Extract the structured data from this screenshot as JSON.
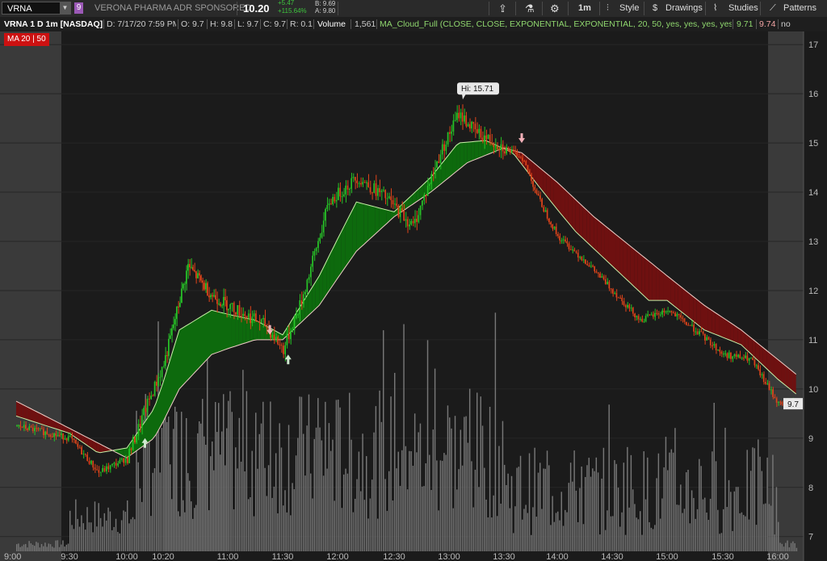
{
  "toolbar": {
    "symbol": "VRNA",
    "symbol_badge": "9",
    "company": "VERONA PHARMA ADR SPONSORED",
    "last": "10.20",
    "change": "+5.47",
    "change_pct": "+115.64%",
    "bid": "B: 9.69",
    "ask": "A: 9.80",
    "timeframe": "1m",
    "style": "Style",
    "drawings": "Drawings",
    "studies": "Studies",
    "patterns": "Patterns"
  },
  "infobar": {
    "title": "VRNA 1 D 1m [NASDAQ]",
    "date": "D: 7/17/20 7:59 PM",
    "open": "O: 9.7",
    "high": "H: 9.8",
    "low": "L: 9.7",
    "close": "C: 9.7",
    "range": "R: 0.1",
    "volume_label": "Volume",
    "volume_value": "1,561",
    "study": "MA_Cloud_Full (CLOSE, CLOSE, EXPONENTIAL, EXPONENTIAL, 20, 50, yes, yes, yes, yes, yes, no)",
    "study_val1": "9.71",
    "study_val2": "9.74",
    "study_val3": "no"
  },
  "ma_label": "MA 20 | 50",
  "colors": {
    "up": "#27c427",
    "down": "#e0441a",
    "cloud_bull": "#0d6a0d",
    "cloud_bear": "#6e1010",
    "ma_fast": "#c8f0a8",
    "ma_slow": "#f0d0c8",
    "volume": "#777777",
    "extended_hours": "#3a3a3a"
  },
  "chart_data": {
    "type": "candlestick",
    "symbol": "VRNA",
    "interval": "1m",
    "ylim": [
      6.7,
      17.2
    ],
    "yticks": [
      7,
      8,
      9,
      10,
      11,
      12,
      13,
      14,
      15,
      16,
      17
    ],
    "xticks": [
      "9:00",
      "9:30",
      "10:00",
      "10:20",
      "11:00",
      "11:30",
      "12:00",
      "12:30",
      "13:00",
      "13:30",
      "14:00",
      "14:30",
      "15:00",
      "15:30",
      "16:00"
    ],
    "last_price_label": "9.7",
    "hi_label": "Hi: 15.71",
    "price_path": [
      [
        "9:00",
        9.25
      ],
      [
        "9:30",
        9.0
      ],
      [
        "9:45",
        8.3
      ],
      [
        "10:00",
        8.6
      ],
      [
        "10:10",
        9.6
      ],
      [
        "10:20",
        10.5
      ],
      [
        "10:35",
        12.5
      ],
      [
        "10:50",
        11.9
      ],
      [
        "11:00",
        11.7
      ],
      [
        "11:20",
        11.3
      ],
      [
        "11:30",
        10.8
      ],
      [
        "11:40",
        11.8
      ],
      [
        "11:55",
        13.8
      ],
      [
        "12:10",
        14.3
      ],
      [
        "12:25",
        13.9
      ],
      [
        "12:40",
        13.3
      ],
      [
        "12:55",
        14.8
      ],
      [
        "13:05",
        15.6
      ],
      [
        "13:15",
        15.2
      ],
      [
        "13:30",
        14.9
      ],
      [
        "13:40",
        14.7
      ],
      [
        "13:50",
        13.8
      ],
      [
        "14:00",
        13.1
      ],
      [
        "14:15",
        12.6
      ],
      [
        "14:30",
        12.0
      ],
      [
        "14:45",
        11.4
      ],
      [
        "15:00",
        11.6
      ],
      [
        "15:15",
        11.2
      ],
      [
        "15:30",
        10.7
      ],
      [
        "15:45",
        10.6
      ],
      [
        "16:00",
        9.7
      ],
      [
        "16:10",
        9.7
      ]
    ],
    "ema20_path": [
      [
        "9:00",
        9.45
      ],
      [
        "9:30",
        9.1
      ],
      [
        "9:45",
        8.7
      ],
      [
        "10:00",
        8.8
      ],
      [
        "10:15",
        9.6
      ],
      [
        "10:30",
        11.2
      ],
      [
        "10:50",
        11.6
      ],
      [
        "11:15",
        11.4
      ],
      [
        "11:30",
        11.1
      ],
      [
        "11:50",
        12.3
      ],
      [
        "12:10",
        13.8
      ],
      [
        "12:30",
        13.6
      ],
      [
        "12:50",
        14.3
      ],
      [
        "13:05",
        15.0
      ],
      [
        "13:20",
        15.05
      ],
      [
        "13:35",
        14.8
      ],
      [
        "13:50",
        14.1
      ],
      [
        "14:10",
        13.2
      ],
      [
        "14:30",
        12.5
      ],
      [
        "14:50",
        11.8
      ],
      [
        "15:00",
        11.8
      ],
      [
        "15:20",
        11.2
      ],
      [
        "15:40",
        10.9
      ],
      [
        "16:00",
        10.2
      ],
      [
        "16:10",
        9.9
      ]
    ],
    "ema50_path": [
      [
        "9:00",
        9.75
      ],
      [
        "9:30",
        9.2
      ],
      [
        "9:45",
        8.9
      ],
      [
        "10:00",
        8.6
      ],
      [
        "10:15",
        9.0
      ],
      [
        "10:30",
        10.0
      ],
      [
        "10:50",
        10.7
      ],
      [
        "11:15",
        11.0
      ],
      [
        "11:30",
        11.0
      ],
      [
        "11:50",
        11.7
      ],
      [
        "12:10",
        12.8
      ],
      [
        "12:30",
        13.5
      ],
      [
        "12:50",
        14.0
      ],
      [
        "13:10",
        14.6
      ],
      [
        "13:30",
        14.9
      ],
      [
        "13:40",
        14.8
      ],
      [
        "14:00",
        14.2
      ],
      [
        "14:20",
        13.5
      ],
      [
        "14:40",
        12.9
      ],
      [
        "15:00",
        12.3
      ],
      [
        "15:20",
        11.7
      ],
      [
        "15:40",
        11.2
      ],
      [
        "16:00",
        10.6
      ],
      [
        "16:10",
        10.3
      ]
    ],
    "signals": [
      {
        "type": "buy",
        "time": "10:10",
        "price": 9.0
      },
      {
        "type": "sell",
        "time": "11:23",
        "price": 11.1
      },
      {
        "type": "buy",
        "time": "11:33",
        "price": 10.7
      },
      {
        "type": "sell",
        "time": "13:40",
        "price": 15.0
      }
    ]
  }
}
